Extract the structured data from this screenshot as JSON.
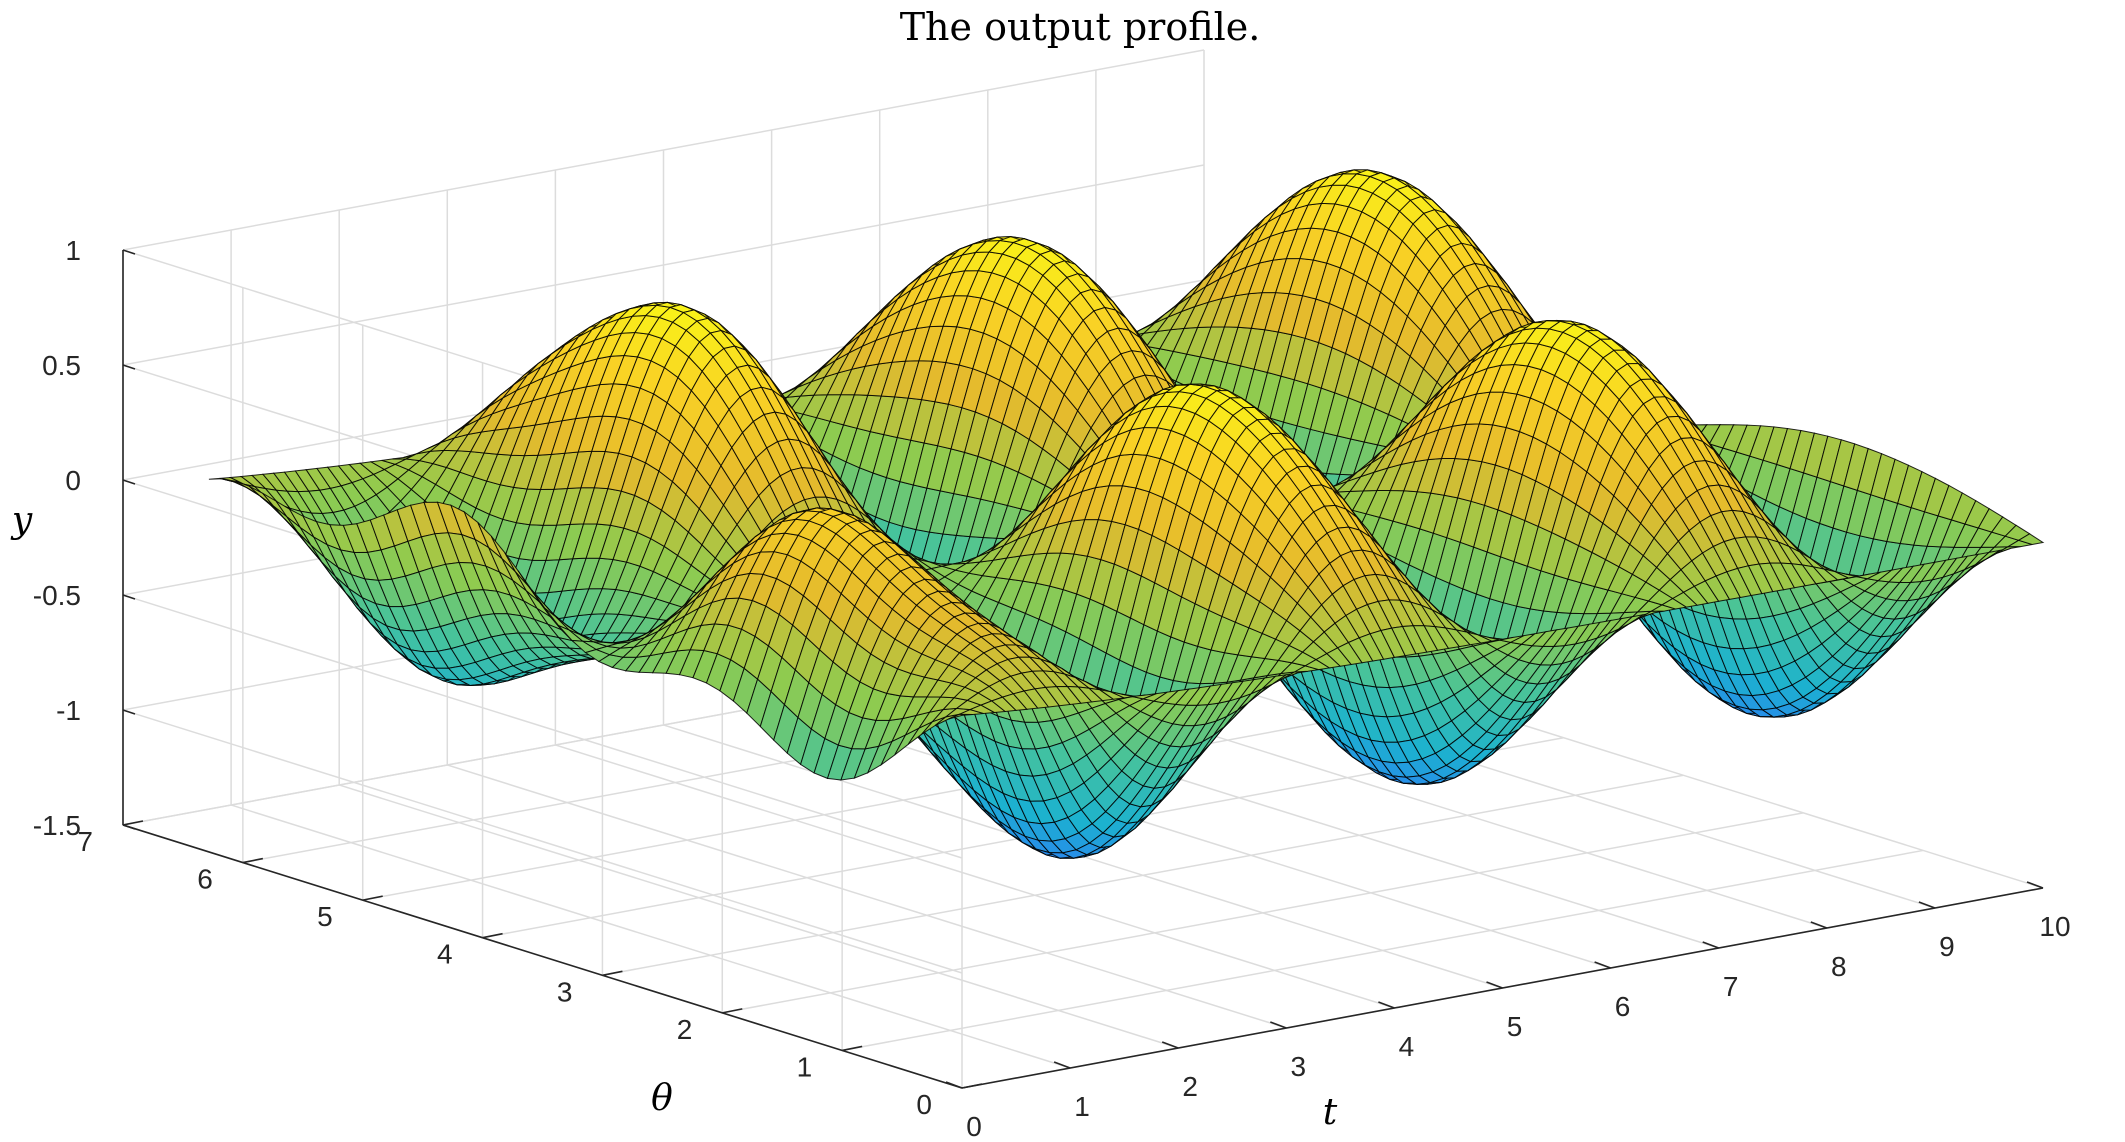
{
  "chart_data": {
    "type": "surface",
    "title": "The output profile.",
    "xlabel": "t",
    "ylabel": "θ",
    "zlabel": "y",
    "xlim": [
      0,
      10
    ],
    "ylim": [
      0,
      7
    ],
    "zlim": [
      -1.5,
      1
    ],
    "x_ticks": [
      "0",
      "1",
      "2",
      "3",
      "4",
      "5",
      "6",
      "7",
      "8",
      "9",
      "10"
    ],
    "y_ticks": [
      "0",
      "1",
      "2",
      "3",
      "4",
      "5",
      "6",
      "7"
    ],
    "z_ticks": [
      "-1.5",
      "-1",
      "-0.5",
      "0",
      "0.5",
      "1"
    ],
    "grid": true,
    "colormap": [
      "#3e26a8",
      "#2c7bf7",
      "#1cb2cf",
      "#46c39c",
      "#8fcb4f",
      "#e4ba2d",
      "#f9d125",
      "#f9fb15"
    ],
    "colormap_name": "parula",
    "edge_color": "#000000",
    "surface_description": "y(t, θ) ≈ sin(θ)·(0.92·sin(2π·t/3.3) − 0.35·exp(−(t−0.6)²)) + 0.12·cos(3θ)·exp(−t/2.5); minimum ≈ −1.35 near t≈1.5, θ≈1.6"
  }
}
